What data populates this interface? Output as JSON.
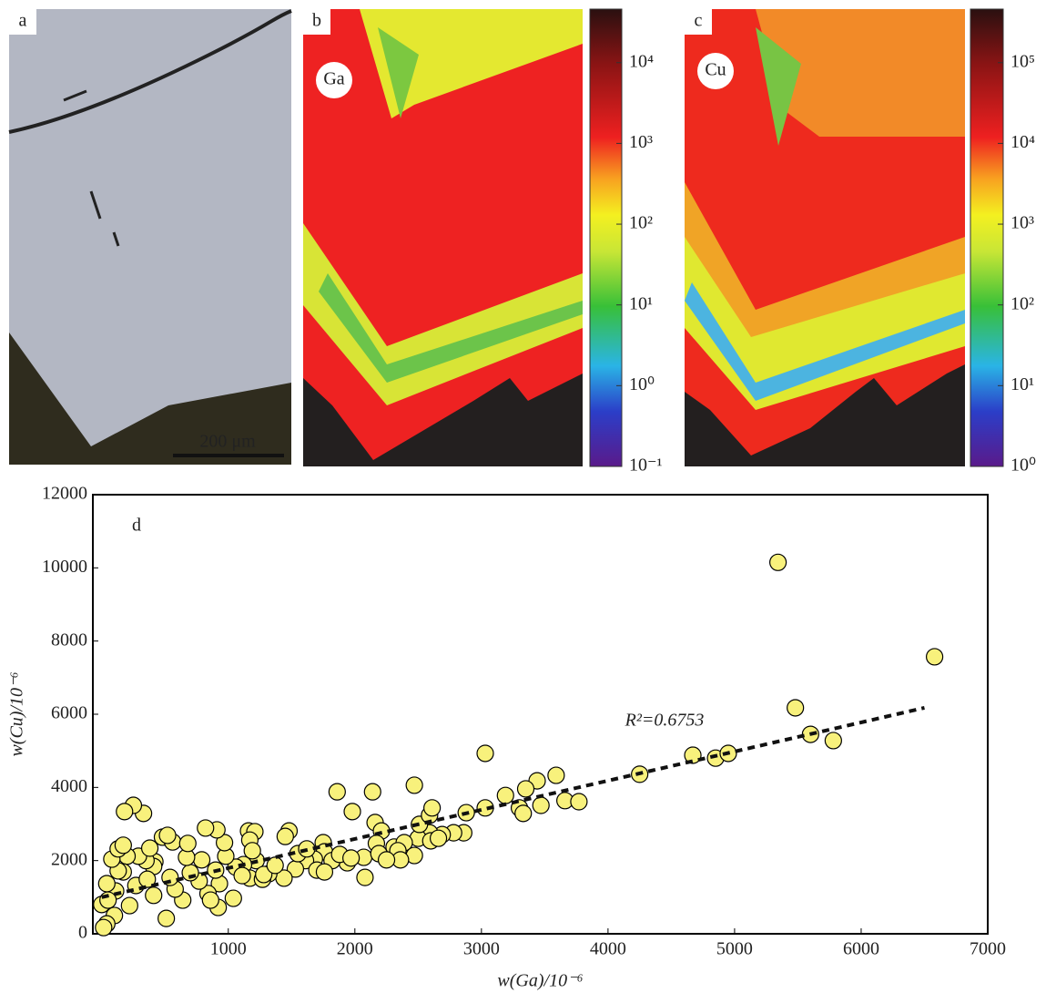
{
  "panels": [
    {
      "label": "a",
      "scale_bar": "200 μm"
    },
    {
      "label": "b",
      "element": "Ga",
      "colorbar": {
        "log": true,
        "lim": [
          0.1,
          46000
        ],
        "ticks": [
          {
            "value": 10000,
            "label": "10⁴"
          },
          {
            "value": 1000,
            "label": "10³"
          },
          {
            "value": 100,
            "label": "10²"
          },
          {
            "value": 10,
            "label": "10¹"
          },
          {
            "value": 1,
            "label": "10⁰"
          },
          {
            "value": 0.1,
            "label": "10⁻¹"
          }
        ]
      }
    },
    {
      "label": "c",
      "element": "Cu",
      "colorbar": {
        "log": true,
        "lim": [
          1,
          460000
        ],
        "ticks": [
          {
            "value": 100000,
            "label": "10⁵"
          },
          {
            "value": 10000,
            "label": "10⁴"
          },
          {
            "value": 1000,
            "label": "10³"
          },
          {
            "value": 100,
            "label": "10²"
          },
          {
            "value": 10,
            "label": "10¹"
          },
          {
            "value": 1,
            "label": "10⁰"
          }
        ]
      }
    }
  ],
  "chart_data": {
    "type": "scatter",
    "panel_label": "d",
    "x_label": "w(Ga)/10⁻⁶",
    "y_label": "w(Cu)/10⁻⁶",
    "xlim": [
      -70,
      7000
    ],
    "xticks": [
      1000,
      2000,
      3000,
      4000,
      5000,
      6000,
      7000
    ],
    "ylim": [
      0,
      12000
    ],
    "yticks": [
      0,
      2000,
      4000,
      6000,
      8000,
      10000,
      12000
    ],
    "color": "#f8f17c",
    "edge_color": "#000000",
    "x": [
      5343,
      6580,
      5480,
      5600,
      5780,
      4670,
      4850,
      4950,
      4250,
      3030,
      3590,
      3440,
      3350,
      3190,
      3300,
      3330,
      3470,
      3660,
      3770,
      3030,
      2880,
      2860,
      2780,
      2690,
      2590,
      2500,
      2470,
      2140,
      1860,
      1980,
      2160,
      2210,
      2170,
      2310,
      2390,
      2510,
      2590,
      2610,
      2070,
      1940,
      2080,
      2470,
      2190,
      2340,
      2600,
      2660,
      1750,
      1760,
      1680,
      1610,
      1820,
      1700,
      1530,
      1480,
      1450,
      1440,
      1320,
      1220,
      1160,
      1210,
      1170,
      1190,
      1120,
      1170,
      1270,
      1060,
      980,
      970,
      910,
      820,
      930,
      920,
      840,
      900,
      790,
      770,
      700,
      640,
      580,
      540,
      420,
      480,
      410,
      350,
      290,
      330,
      250,
      180,
      200,
      170,
      270,
      220,
      110,
      130,
      100,
      40,
      15,
      0,
      80,
      130,
      170,
      40,
      50,
      360,
      410,
      510,
      560,
      520,
      380,
      670,
      680,
      860,
      1040,
      1110,
      1280,
      1370,
      1550,
      1620,
      1760,
      1880,
      1970,
      2360,
      2250
    ],
    "values": [
      10150,
      7570,
      6175,
      5450,
      5280,
      4880,
      4800,
      4930,
      4360,
      4930,
      4330,
      4180,
      3960,
      3780,
      3440,
      3290,
      3510,
      3640,
      3610,
      3440,
      3310,
      2760,
      2760,
      2710,
      2760,
      2610,
      4060,
      3880,
      3880,
      3340,
      3040,
      2810,
      2470,
      2370,
      2490,
      2990,
      3240,
      3440,
      2090,
      1940,
      1540,
      2140,
      2190,
      2270,
      2540,
      2610,
      2490,
      2240,
      2040,
      2000,
      2000,
      1740,
      1770,
      2810,
      2660,
      1520,
      1640,
      2000,
      2810,
      2790,
      2560,
      2270,
      1890,
      1520,
      1490,
      1820,
      2120,
      2490,
      2840,
      2890,
      1370,
      720,
      1100,
      1740,
      2020,
      1440,
      1670,
      920,
      1220,
      1540,
      1970,
      2640,
      1840,
      2000,
      2120,
      3290,
      3510,
      3340,
      2120,
      1690,
      1320,
      770,
      1170,
      1720,
      500,
      270,
      170,
      800,
      2040,
      2320,
      2420,
      1370,
      920,
      1490,
      1050,
      420,
      2510,
      2690,
      2340,
      2090,
      2470,
      920,
      970,
      1590,
      1620,
      1870,
      2190,
      2320,
      1690,
      2170,
      2070,
      2020,
      2020
    ],
    "trend_line": {
      "x": [
        0,
        6500
      ],
      "values": [
        1000,
        6175
      ]
    },
    "annotation": "R²=0.6753"
  }
}
